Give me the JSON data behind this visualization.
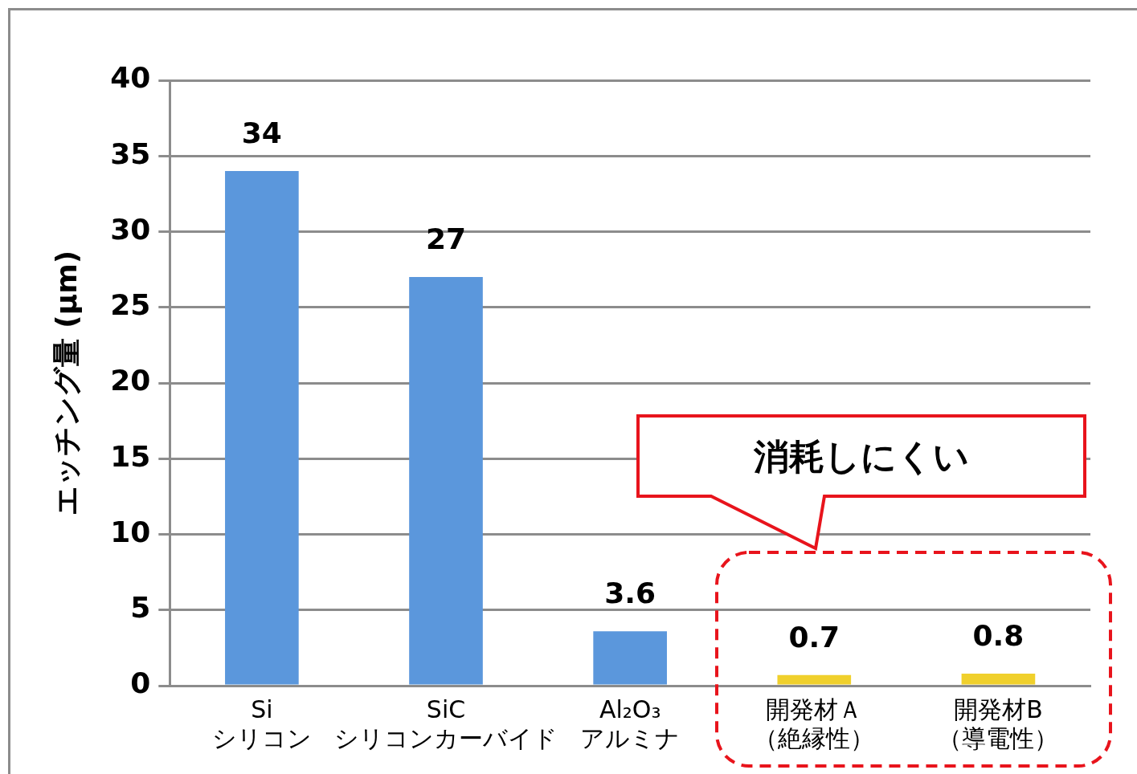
{
  "chart_data": {
    "type": "bar",
    "categories": [
      "Si\nシリコン",
      "SiC\nシリコンカーバイド",
      "Al₂O₃\nアルミナ",
      "開発材Ａ（絶縁性）",
      "開発材B（導電性）"
    ],
    "values": [
      34,
      27,
      3.6,
      0.7,
      0.8
    ],
    "colors": [
      "#5b97dc",
      "#5b97dc",
      "#5b97dc",
      "#f0d02c",
      "#f0d02c"
    ],
    "ylabel": "エッチング量 (µm)",
    "ylim": [
      0,
      40
    ],
    "yticks": [
      0,
      5,
      10,
      15,
      20,
      25,
      30,
      35,
      40
    ],
    "grid": "y",
    "legend": false,
    "data_labels": true,
    "annotations": [
      "消耗しにくい"
    ]
  }
}
